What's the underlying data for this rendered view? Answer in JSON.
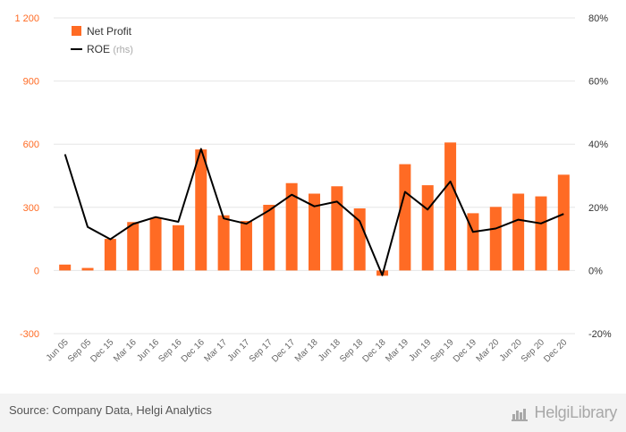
{
  "chart_data": {
    "type": "bar",
    "categories": [
      "Jun 05",
      "Sep 05",
      "Dec 15",
      "Mar 16",
      "Jun 16",
      "Sep 16",
      "Dec 16",
      "Mar 17",
      "Jun 17",
      "Sep 17",
      "Dec 17",
      "Mar 18",
      "Jun 18",
      "Sep 18",
      "Dec 18",
      "Mar 19",
      "Jun 19",
      "Sep 19",
      "Dec 19",
      "Mar 20",
      "Jun 20",
      "Sep 20",
      "Dec 20"
    ],
    "series": [
      {
        "name": "Net Profit",
        "type": "bar",
        "axis": "left",
        "color": "#ff6b24",
        "values": [
          28,
          12,
          150,
          230,
          250,
          215,
          575,
          262,
          235,
          312,
          415,
          365,
          400,
          295,
          -25,
          505,
          405,
          608,
          272,
          302,
          365,
          352,
          455
        ]
      },
      {
        "name": "ROE",
        "name_suffix": "(rhs)",
        "type": "line",
        "axis": "right",
        "color": "#000000",
        "values": [
          36.8,
          13.8,
          9.9,
          14.7,
          16.9,
          15.4,
          38.5,
          16.5,
          14.8,
          19.0,
          24.0,
          20.3,
          21.8,
          15.6,
          -1.5,
          24.9,
          19.3,
          28.2,
          12.2,
          13.3,
          16.1,
          14.9,
          17.9
        ]
      }
    ],
    "y_left": {
      "min": -300,
      "max": 1200,
      "ticks": [
        -300,
        0,
        300,
        600,
        900,
        1200
      ],
      "tick_labels": [
        "-300",
        "0",
        "300",
        "600",
        "900",
        "1 200"
      ]
    },
    "y_right": {
      "min": -20,
      "max": 80,
      "ticks": [
        -20,
        0,
        20,
        40,
        60,
        80
      ],
      "tick_labels": [
        "-20%",
        "0%",
        "20%",
        "40%",
        "60%",
        "80%"
      ]
    },
    "grid": true,
    "legend": {
      "position": "top-left"
    }
  },
  "colors": {
    "bar": "#ff6b24",
    "line": "#000000",
    "left_axis_text": "#ff6b24",
    "right_axis_text": "#333333",
    "grid": "#e6e6e6"
  },
  "footer": {
    "source": "Source: Company Data, Helgi Analytics",
    "logo": "HelgiLibrary"
  }
}
